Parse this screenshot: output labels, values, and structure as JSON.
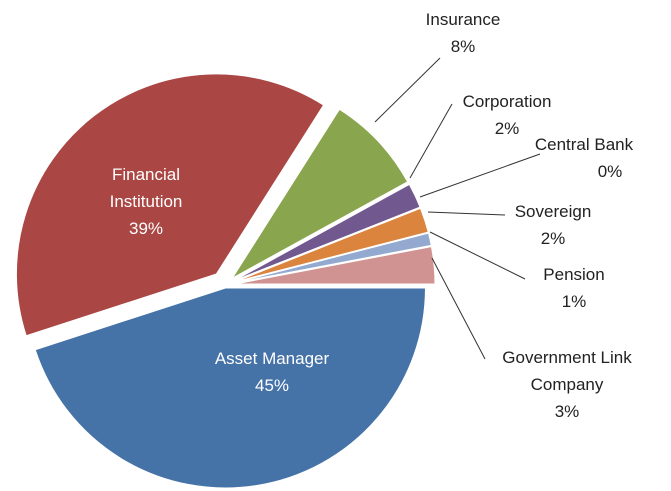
{
  "chart_data": {
    "type": "pie",
    "categories": [
      "Asset Manager",
      "Financial Institution",
      "Insurance",
      "Corporation",
      "Central Bank",
      "Sovereign",
      "Pension",
      "Government Link Company"
    ],
    "values": [
      45,
      39,
      8,
      2,
      0,
      2,
      1,
      3
    ],
    "value_labels": [
      "45%",
      "39%",
      "8%",
      "2%",
      "0%",
      "2%",
      "1%",
      "3%"
    ],
    "colors": [
      "#4572a7",
      "#aa4643",
      "#89a54e",
      "#71588f",
      "#4198af",
      "#db843d",
      "#93a9cf",
      "#d09392"
    ]
  }
}
